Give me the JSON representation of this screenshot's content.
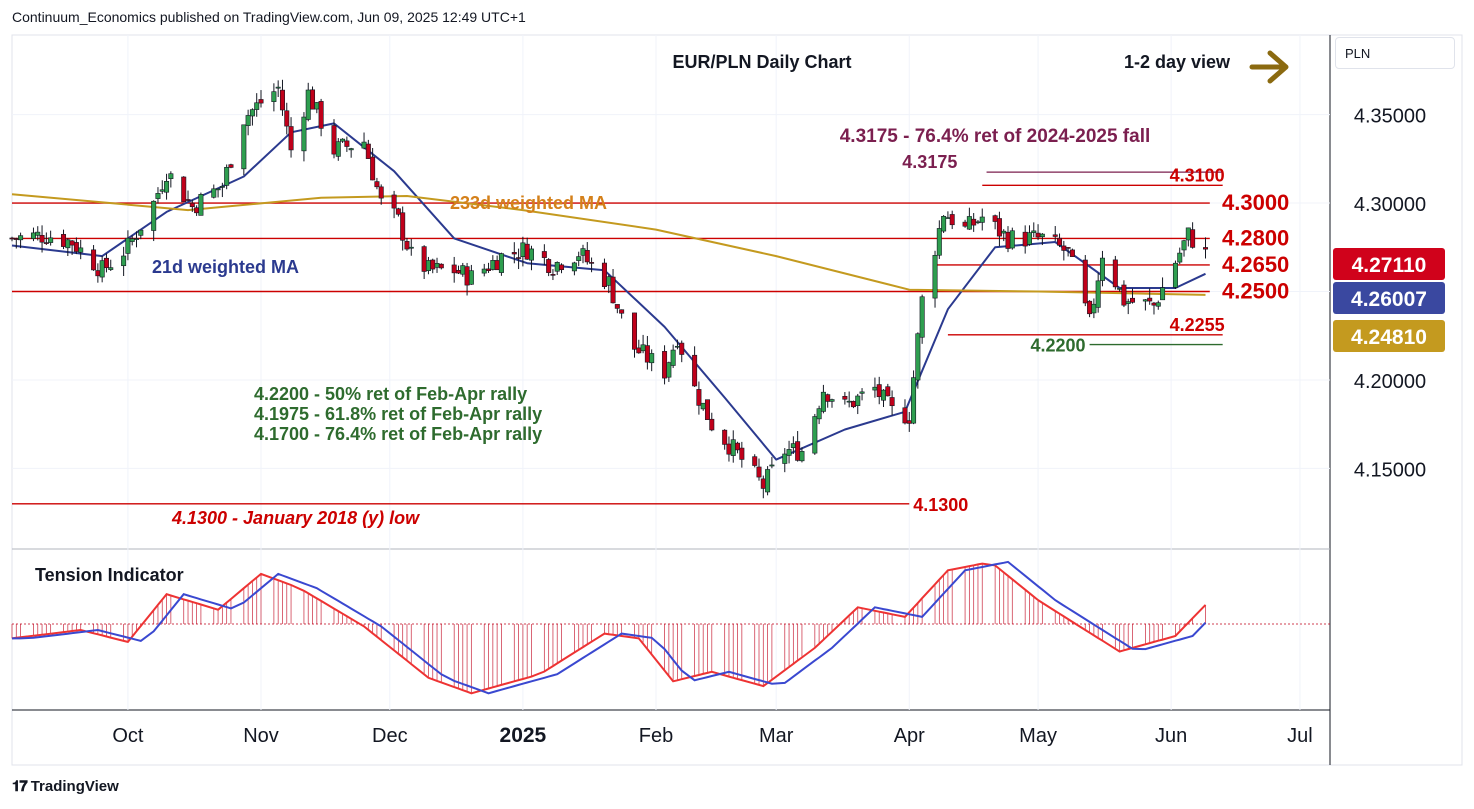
{
  "header": {
    "publisher": "Continuum_Economics published on TradingView.com, Jun 09, 2025 12:49 UTC+1"
  },
  "footer": {
    "brand": "TradingView",
    "logo": "TV-logo"
  },
  "currency": "PLN",
  "chart_data": {
    "type": "candlestick",
    "title": "EUR/PLN Daily Chart",
    "view_label": "1-2 day view",
    "view_arrow": "right-arrow-icon",
    "ylim": [
      4.105,
      4.395
    ],
    "y_ticks": [
      4.15,
      4.2,
      4.25,
      4.3,
      4.35
    ],
    "y_tick_labels": [
      "4.15000",
      "4.20000",
      "4.25000",
      "4.30000",
      "4.35000"
    ],
    "x_tick_labels": [
      {
        "label": "Oct",
        "date": "2024-10-01"
      },
      {
        "label": "Nov",
        "date": "2024-11-01"
      },
      {
        "label": "Dec",
        "date": "2024-12-01"
      },
      {
        "label": "2025",
        "date": "2025-01-01"
      },
      {
        "label": "Feb",
        "date": "2025-02-01"
      },
      {
        "label": "Mar",
        "date": "2025-03-01"
      },
      {
        "label": "Apr",
        "date": "2025-04-01"
      },
      {
        "label": "May",
        "date": "2025-05-01"
      },
      {
        "label": "Jun",
        "date": "2025-06-01"
      },
      {
        "label": "Jul",
        "date": "2025-07-01"
      }
    ],
    "x_range": [
      "2024-09-04",
      "2025-07-08"
    ],
    "price_badges": [
      {
        "value": "4.27110",
        "color": "#d0021b"
      },
      {
        "value": "4.26007",
        "color": "#3a48a0"
      },
      {
        "value": "4.24810",
        "color": "#c49a1f"
      }
    ],
    "levels": [
      {
        "value": 4.3175,
        "label": "4.3175",
        "color": "#7b1f4f",
        "from": "2025-04-19",
        "to": "2025-06-13"
      },
      {
        "value": 4.31,
        "label": "4.3100",
        "color": "#cc0000",
        "from": "2025-04-18",
        "to": "2025-06-13"
      },
      {
        "value": 4.3,
        "label": "4.3000",
        "color": "#cc0000",
        "from": "2024-09-04",
        "to": "2025-06-10"
      },
      {
        "value": 4.28,
        "label": "4.2800",
        "color": "#cc0000",
        "from": "2024-09-04",
        "to": "2025-06-10"
      },
      {
        "value": 4.265,
        "label": "4.2650",
        "color": "#cc0000",
        "from": "2025-04-07",
        "to": "2025-06-10"
      },
      {
        "value": 4.25,
        "label": "4.2500",
        "color": "#cc0000",
        "from": "2024-09-04",
        "to": "2025-06-10"
      },
      {
        "value": 4.2255,
        "label": "4.2255",
        "color": "#cc0000",
        "from": "2025-04-10",
        "to": "2025-06-13"
      },
      {
        "value": 4.22,
        "label": "4.2200",
        "color": "#2e6b2e",
        "from": "2025-05-13",
        "to": "2025-06-13"
      },
      {
        "value": 4.13,
        "label": "4.1300",
        "color": "#cc0000",
        "from": "2024-09-04",
        "to": "2025-04-01"
      }
    ],
    "annotations": [
      {
        "text": "4.3175 - 76.4% ret of 2024-2025 fall",
        "color": "#7b1f4f"
      },
      {
        "text": "233d weighted MA",
        "color": "#d4801a"
      },
      {
        "text": "21d weighted MA",
        "color": "#2b3a8f"
      },
      {
        "text": "4.2200 - 50% ret of Feb-Apr rally",
        "color": "#2e6b2e"
      },
      {
        "text": "4.1975 - 61.8% ret of Feb-Apr rally",
        "color": "#2e6b2e"
      },
      {
        "text": "4.1700 - 76.4% ret of Feb-Apr rally",
        "color": "#2e6b2e"
      },
      {
        "text": "4.1300 - January 2018 (y) low",
        "color": "#cc0000"
      }
    ],
    "path_points": [
      [
        "2024-09-04",
        4.28
      ],
      [
        "2024-09-12",
        4.282
      ],
      [
        "2024-09-18",
        4.278
      ],
      [
        "2024-09-25",
        4.262
      ],
      [
        "2024-10-01",
        4.275
      ],
      [
        "2024-10-07",
        4.3
      ],
      [
        "2024-10-10",
        4.318
      ],
      [
        "2024-10-16",
        4.298
      ],
      [
        "2024-10-23",
        4.31
      ],
      [
        "2024-10-28",
        4.348
      ],
      [
        "2024-11-01",
        4.357
      ],
      [
        "2024-11-05",
        4.365
      ],
      [
        "2024-11-08",
        4.33
      ],
      [
        "2024-11-12",
        4.362
      ],
      [
        "2024-11-18",
        4.33
      ],
      [
        "2024-11-25",
        4.335
      ],
      [
        "2024-11-29",
        4.3
      ],
      [
        "2024-12-03",
        4.29
      ],
      [
        "2024-12-06",
        4.27
      ],
      [
        "2024-12-10",
        4.262
      ],
      [
        "2024-12-16",
        4.262
      ],
      [
        "2024-12-20",
        4.258
      ],
      [
        "2024-12-27",
        4.27
      ],
      [
        "2025-01-02",
        4.274
      ],
      [
        "2025-01-08",
        4.265
      ],
      [
        "2025-01-14",
        4.272
      ],
      [
        "2025-01-21",
        4.255
      ],
      [
        "2025-01-24",
        4.235
      ],
      [
        "2025-01-27",
        4.218
      ],
      [
        "2025-02-03",
        4.205
      ],
      [
        "2025-02-06",
        4.225
      ],
      [
        "2025-02-10",
        4.195
      ],
      [
        "2025-02-14",
        4.175
      ],
      [
        "2025-02-20",
        4.158
      ],
      [
        "2025-02-26",
        4.14
      ],
      [
        "2025-03-03",
        4.16
      ],
      [
        "2025-03-07",
        4.16
      ],
      [
        "2025-03-12",
        4.195
      ],
      [
        "2025-03-17",
        4.185
      ],
      [
        "2025-03-24",
        4.195
      ],
      [
        "2025-03-28",
        4.182
      ],
      [
        "2025-04-01",
        4.18
      ],
      [
        "2025-04-04",
        4.245
      ],
      [
        "2025-04-09",
        4.295
      ],
      [
        "2025-04-14",
        4.285
      ],
      [
        "2025-04-18",
        4.292
      ],
      [
        "2025-04-24",
        4.28
      ],
      [
        "2025-05-02",
        4.28
      ],
      [
        "2025-05-08",
        4.272
      ],
      [
        "2025-05-13",
        4.232
      ],
      [
        "2025-05-16",
        4.272
      ],
      [
        "2025-05-21",
        4.245
      ],
      [
        "2025-05-28",
        4.242
      ],
      [
        "2025-06-03",
        4.272
      ],
      [
        "2025-06-05",
        4.282
      ],
      [
        "2025-06-09",
        4.2711
      ]
    ],
    "series": [
      {
        "name": "21d weighted MA",
        "color": "#2b3a8f",
        "points": [
          [
            "2024-09-04",
            4.276
          ],
          [
            "2024-09-25",
            4.27
          ],
          [
            "2024-10-10",
            4.295
          ],
          [
            "2024-10-28",
            4.315
          ],
          [
            "2024-11-08",
            4.34
          ],
          [
            "2024-11-18",
            4.345
          ],
          [
            "2024-12-02",
            4.318
          ],
          [
            "2024-12-16",
            4.28
          ],
          [
            "2025-01-02",
            4.266
          ],
          [
            "2025-01-20",
            4.262
          ],
          [
            "2025-02-03",
            4.23
          ],
          [
            "2025-02-17",
            4.19
          ],
          [
            "2025-03-01",
            4.155
          ],
          [
            "2025-03-17",
            4.172
          ],
          [
            "2025-03-31",
            4.182
          ],
          [
            "2025-04-10",
            4.24
          ],
          [
            "2025-04-21",
            4.275
          ],
          [
            "2025-05-05",
            4.278
          ],
          [
            "2025-05-20",
            4.252
          ],
          [
            "2025-06-02",
            4.252
          ],
          [
            "2025-06-09",
            4.26
          ]
        ]
      },
      {
        "name": "233d weighted MA",
        "color": "#c49a1f",
        "points": [
          [
            "2024-09-04",
            4.305
          ],
          [
            "2024-10-15",
            4.296
          ],
          [
            "2024-11-15",
            4.303
          ],
          [
            "2024-12-05",
            4.304
          ],
          [
            "2025-01-01",
            4.296
          ],
          [
            "2025-02-01",
            4.285
          ],
          [
            "2025-03-01",
            4.27
          ],
          [
            "2025-04-01",
            4.251
          ],
          [
            "2025-05-01",
            4.25
          ],
          [
            "2025-06-09",
            4.2481
          ]
        ]
      }
    ],
    "tension_indicator": {
      "title": "Tension Indicator",
      "ylim": [
        -0.72,
        0.62
      ],
      "histogram": [
        [
          "2024-09-04",
          -0.12
        ],
        [
          "2024-09-20",
          -0.05
        ],
        [
          "2024-10-01",
          -0.15
        ],
        [
          "2024-10-10",
          0.25
        ],
        [
          "2024-10-22",
          0.12
        ],
        [
          "2024-11-01",
          0.42
        ],
        [
          "2024-11-10",
          0.3
        ],
        [
          "2024-11-25",
          -0.02
        ],
        [
          "2024-12-10",
          -0.45
        ],
        [
          "2024-12-20",
          -0.58
        ],
        [
          "2025-01-05",
          -0.42
        ],
        [
          "2025-01-20",
          -0.08
        ],
        [
          "2025-01-28",
          -0.12
        ],
        [
          "2025-02-05",
          -0.48
        ],
        [
          "2025-02-14",
          -0.4
        ],
        [
          "2025-02-26",
          -0.52
        ],
        [
          "2025-03-10",
          -0.2
        ],
        [
          "2025-03-20",
          0.14
        ],
        [
          "2025-03-31",
          0.06
        ],
        [
          "2025-04-10",
          0.45
        ],
        [
          "2025-04-20",
          0.52
        ],
        [
          "2025-05-01",
          0.2
        ],
        [
          "2025-05-12",
          -0.05
        ],
        [
          "2025-05-20",
          -0.23
        ],
        [
          "2025-06-02",
          -0.1
        ],
        [
          "2025-06-09",
          0.16
        ]
      ]
    }
  }
}
